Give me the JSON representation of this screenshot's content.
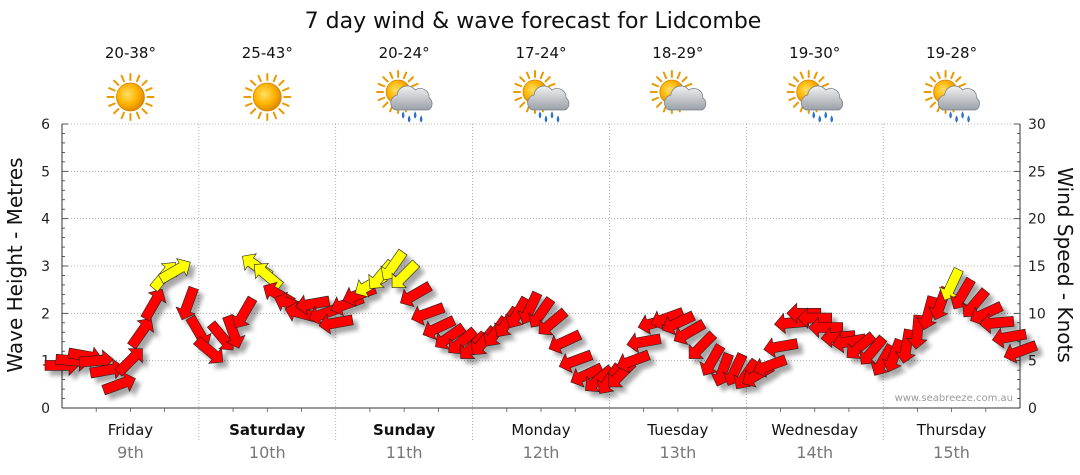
{
  "chart_data": {
    "type": "line",
    "title": "7 day wind & wave forecast for Lidcombe",
    "y_left_label": "Wave Height - Metres",
    "y_right_label": "Wind Speed - Knots",
    "y_left_range": [
      0,
      6
    ],
    "y_right_range": [
      0,
      30
    ],
    "y_left_ticks": [
      "0",
      "1",
      "2",
      "3",
      "4",
      "5",
      "6"
    ],
    "y_right_ticks": [
      "0",
      "5",
      "10",
      "15",
      "20",
      "25",
      "30"
    ],
    "grid": true,
    "watermark": "www.seabreeze.com.au",
    "days": [
      {
        "name": "Friday",
        "date": "9th",
        "temp": "20-38°",
        "icon": "sunny-icon",
        "bold": false
      },
      {
        "name": "Saturday",
        "date": "10th",
        "temp": "25-43°",
        "icon": "sunny-icon",
        "bold": true
      },
      {
        "name": "Sunday",
        "date": "11th",
        "temp": "20-24°",
        "icon": "sun-rain-icon",
        "bold": true
      },
      {
        "name": "Monday",
        "date": "12th",
        "temp": "17-24°",
        "icon": "sun-rain-icon",
        "bold": false
      },
      {
        "name": "Tuesday",
        "date": "13th",
        "temp": "18-29°",
        "icon": "sun-cloud-icon",
        "bold": false
      },
      {
        "name": "Wednesday",
        "date": "14th",
        "temp": "19-30°",
        "icon": "sun-rain-icon",
        "bold": false
      },
      {
        "name": "Thursday",
        "date": "15th",
        "temp": "19-28°",
        "icon": "sun-rain-icon",
        "bold": false
      }
    ],
    "colors": {
      "low": "#ff0000",
      "high": "#ffff00"
    },
    "wind_series": {
      "name": "Wind",
      "t_days": [
        0.0,
        0.08,
        0.17,
        0.25,
        0.33,
        0.42,
        0.5,
        0.58,
        0.67,
        0.75,
        0.83,
        0.92,
        1.0,
        1.08,
        1.17,
        1.25,
        1.33,
        1.42,
        1.5,
        1.58,
        1.67,
        1.75,
        1.83,
        1.92,
        2.0,
        2.08,
        2.17,
        2.25,
        2.33,
        2.42,
        2.5,
        2.58,
        2.67,
        2.75,
        2.83,
        2.92,
        3.0,
        3.08,
        3.17,
        3.25,
        3.33,
        3.42,
        3.5,
        3.58,
        3.67,
        3.75,
        3.83,
        3.92,
        4.0,
        4.08,
        4.17,
        4.25,
        4.33,
        4.42,
        4.5,
        4.58,
        4.67,
        4.75,
        4.83,
        4.92,
        5.0,
        5.08,
        5.17,
        5.25,
        5.33,
        5.42,
        5.5,
        5.58,
        5.67,
        5.75,
        5.83,
        5.92,
        6.0,
        6.08,
        6.17,
        6.25,
        6.33,
        6.42,
        6.5,
        6.58,
        6.67,
        6.75,
        6.83,
        6.92,
        7.0
      ],
      "speed_knots": [
        4.5,
        5,
        5.5,
        5,
        4,
        2.5,
        5,
        8,
        11,
        14,
        14.5,
        11,
        8,
        6,
        7.5,
        8,
        10,
        15,
        14,
        12,
        11,
        10,
        11,
        10,
        9,
        11,
        12,
        13,
        14,
        15,
        14,
        12,
        10,
        8.5,
        7.5,
        7,
        6.5,
        7,
        8,
        9,
        10,
        10.5,
        10,
        9,
        7,
        5,
        3.5,
        3,
        3,
        3.5,
        5,
        7,
        9,
        9.5,
        9,
        8,
        6.5,
        5,
        4,
        4,
        3.5,
        3.5,
        4.5,
        6.5,
        9,
        10,
        9.5,
        8.5,
        7.5,
        7,
        6.5,
        6,
        5,
        5.5,
        6.5,
        8,
        10,
        11,
        13,
        12,
        11,
        10,
        9,
        7.5,
        6
      ],
      "direction_deg": [
        90,
        95,
        100,
        85,
        80,
        70,
        45,
        35,
        30,
        40,
        60,
        200,
        150,
        130,
        140,
        160,
        210,
        305,
        310,
        300,
        290,
        285,
        260,
        250,
        260,
        250,
        250,
        240,
        220,
        215,
        225,
        240,
        250,
        245,
        235,
        230,
        225,
        220,
        215,
        215,
        210,
        205,
        215,
        230,
        245,
        250,
        245,
        230,
        215,
        225,
        250,
        260,
        255,
        250,
        245,
        240,
        225,
        210,
        200,
        205,
        215,
        240,
        250,
        260,
        265,
        270,
        270,
        270,
        265,
        260,
        230,
        220,
        210,
        200,
        190,
        185,
        195,
        200,
        205,
        210,
        220,
        245,
        265,
        260,
        250
      ]
    }
  }
}
